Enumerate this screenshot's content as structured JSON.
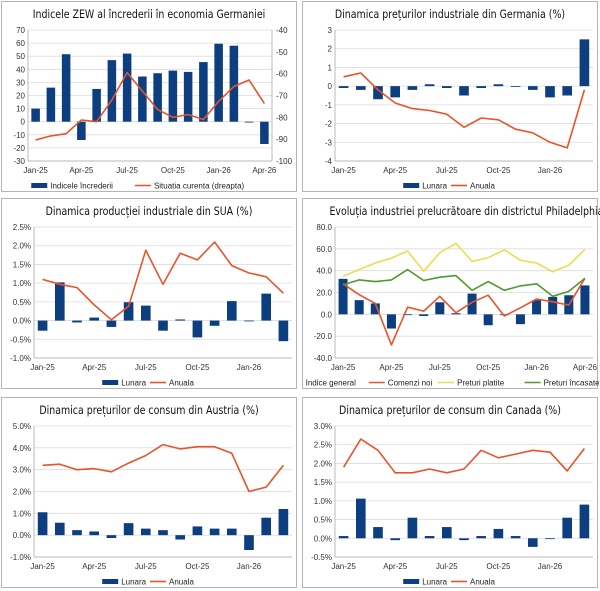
{
  "colors": {
    "bar": "#0d3f80",
    "line": "#e8532b",
    "yellow": "#ecdc50",
    "green": "#4e9a2c",
    "grid": "#dcdcdc"
  },
  "chart_data": [
    {
      "id": "zew",
      "type": "bar+line",
      "title": "Indicele ZEW al încrederii în economia Germaniei",
      "categories": [
        "Jan-25",
        "Feb-25",
        "Mar-25",
        "Apr-25",
        "May-25",
        "Jun-25",
        "Jul-25",
        "Aug-25",
        "Sep-25",
        "Oct-25",
        "Nov-25",
        "Dec-25",
        "Jan-26",
        "Feb-26",
        "Mar-26",
        "Apr-26"
      ],
      "xticks": [
        "Jan-25",
        "Apr-25",
        "Jul-25",
        "Oct-25",
        "Jan-26",
        "Apr-26"
      ],
      "ylim": [
        -30,
        70
      ],
      "ystep": 10,
      "yticks": [
        "70",
        "60",
        "50",
        "40",
        "30",
        "20",
        "10",
        "0",
        "-10",
        "-20",
        "-30"
      ],
      "y2lim": [
        -100,
        -40
      ],
      "y2ticks": [
        "-40",
        "-50",
        "-60",
        "-70",
        "-80",
        "-90",
        "-100"
      ],
      "series": [
        {
          "name": "Indicele încrederii",
          "kind": "bar",
          "color": "#0d3f80",
          "values": [
            10,
            26,
            51.5,
            -14,
            25,
            47,
            52,
            34.5,
            37,
            39,
            38,
            45.5,
            59.5,
            58,
            -0.5,
            -17
          ]
        },
        {
          "name": "Situatia curenta (dreapta)",
          "kind": "line",
          "axis": "right",
          "color": "#e8532b",
          "values": [
            -90.4,
            -88.5,
            -87.5,
            -81.2,
            -82,
            -72,
            -59.5,
            -68,
            -76.4,
            -80,
            -78.7,
            -81,
            -72.7,
            -65.9,
            -62.9,
            -73.7
          ]
        }
      ]
    },
    {
      "id": "ppi-de",
      "type": "bar+line",
      "title": "Dinamica prețurilor industriale din Germania (%)",
      "categories": [
        "Jan-25",
        "Feb-25",
        "Mar-25",
        "Apr-25",
        "May-25",
        "Jun-25",
        "Jul-25",
        "Aug-25",
        "Sep-25",
        "Oct-25",
        "Nov-25",
        "Dec-25",
        "Jan-26",
        "Feb-26",
        "Mar-26"
      ],
      "xticks": [
        "Jan-25",
        "Apr-25",
        "Jul-25",
        "Oct-25",
        "Jan-26"
      ],
      "ylim": [
        -4,
        3
      ],
      "yticks": [
        "3",
        "2",
        "1",
        "0",
        "-1",
        "-2",
        "-3",
        "-4"
      ],
      "series": [
        {
          "name": "Lunara",
          "kind": "bar",
          "color": "#0d3f80",
          "values": [
            -0.1,
            -0.2,
            -0.7,
            -0.6,
            -0.2,
            0.1,
            -0.1,
            -0.5,
            -0.1,
            0.1,
            0.0,
            -0.2,
            -0.6,
            -0.5,
            2.5
          ]
        },
        {
          "name": "Anuala",
          "kind": "line",
          "color": "#e8532b",
          "values": [
            0.5,
            0.7,
            -0.2,
            -0.9,
            -1.2,
            -1.3,
            -1.5,
            -2.2,
            -1.7,
            -1.8,
            -2.3,
            -2.5,
            -3.0,
            -3.3,
            -0.2
          ]
        }
      ]
    },
    {
      "id": "ip-us",
      "type": "bar+line",
      "title": "Dinamica producției industriale din SUA (%)",
      "categories": [
        "Jan-25",
        "Feb-25",
        "Mar-25",
        "Apr-25",
        "May-25",
        "Jun-25",
        "Jul-25",
        "Aug-25",
        "Sep-25",
        "Oct-25",
        "Nov-25",
        "Dec-25",
        "Jan-26",
        "Feb-26",
        "Mar-26"
      ],
      "xticks": [
        "Jan-25",
        "Apr-25",
        "Jul-25",
        "Oct-25",
        "Jan-26"
      ],
      "ylim": [
        -1.0,
        2.5
      ],
      "yticks": [
        "2.5%",
        "2.0%",
        "1.5%",
        "1.0%",
        "0.5%",
        "0.0%",
        "-0.5%",
        "-1.0%"
      ],
      "series": [
        {
          "name": "Lunara",
          "kind": "bar",
          "color": "#0d3f80",
          "values": [
            -0.27,
            1.02,
            -0.05,
            0.08,
            -0.17,
            0.49,
            0.4,
            -0.27,
            0.03,
            -0.45,
            -0.14,
            0.52,
            -0.02,
            0.72,
            -0.55
          ]
        },
        {
          "name": "Anuala",
          "kind": "line",
          "color": "#e8532b",
          "values": [
            1.1,
            0.97,
            0.88,
            0.42,
            0.02,
            0.38,
            1.88,
            0.97,
            1.8,
            1.62,
            2.1,
            1.47,
            1.27,
            1.17,
            0.73
          ]
        }
      ]
    },
    {
      "id": "philly",
      "type": "bar+line",
      "title": "Evoluția industriei prelucrătoare din districtul Philadelphia",
      "categories": [
        "Jan-25",
        "Feb-25",
        "Mar-25",
        "Apr-25",
        "May-25",
        "Jun-25",
        "Jul-25",
        "Aug-25",
        "Sep-25",
        "Oct-25",
        "Nov-25",
        "Dec-25",
        "Jan-26",
        "Feb-26",
        "Mar-26",
        "Apr-26"
      ],
      "xticks": [
        "Jan-25",
        "Apr-25",
        "Jul-25",
        "Oct-25",
        "Jan-26",
        "Apr-26"
      ],
      "ylim": [
        -40,
        80
      ],
      "yticks": [
        "80.0",
        "60.0",
        "40.0",
        "20.0",
        "0.0",
        "-20.0",
        "-40.0"
      ],
      "series": [
        {
          "name": "Indice general",
          "kind": "bar",
          "color": "#0d3f80",
          "values": [
            32.5,
            13,
            10,
            -13,
            0,
            -1.5,
            11,
            1,
            19,
            -10,
            0,
            -9,
            13,
            16,
            17.5,
            26.5
          ]
        },
        {
          "name": "Comenzi noi",
          "kind": "line",
          "color": "#e8532b",
          "values": [
            28,
            18,
            10,
            -28,
            6.5,
            3,
            16.5,
            1.5,
            11,
            17.5,
            -1.5,
            6,
            14,
            11.5,
            8.5,
            33
          ]
        },
        {
          "name": "Preturi platite",
          "kind": "line",
          "color": "#ecdc50",
          "values": [
            35,
            41,
            47,
            51.5,
            58,
            39.5,
            56.5,
            65,
            48.5,
            52,
            59,
            49.5,
            47,
            39,
            45,
            59.5
          ]
        },
        {
          "name": "Preturi încasate",
          "kind": "line",
          "color": "#4e9a2c",
          "values": [
            27,
            31.5,
            30,
            31.5,
            41,
            31,
            34,
            35.5,
            22,
            30,
            22,
            26,
            28,
            16.5,
            21,
            33
          ]
        }
      ]
    },
    {
      "id": "cpi-at",
      "type": "bar+line",
      "title": "Dinamica prețurilor de consum din Austria (%)",
      "categories": [
        "Jan-25",
        "Feb-25",
        "Mar-25",
        "Apr-25",
        "May-25",
        "Jun-25",
        "Jul-25",
        "Aug-25",
        "Sep-25",
        "Oct-25",
        "Nov-25",
        "Dec-25",
        "Jan-26",
        "Feb-26",
        "Mar-26"
      ],
      "xticks": [
        "Jan-25",
        "Apr-25",
        "Jul-25",
        "Oct-25",
        "Jan-26"
      ],
      "ylim": [
        -1.0,
        5.0
      ],
      "yticks": [
        "5.0%",
        "4.0%",
        "3.0%",
        "2.0%",
        "1.0%",
        "0.0%",
        "-1.0%"
      ],
      "series": [
        {
          "name": "Lunara",
          "kind": "bar",
          "color": "#0d3f80",
          "values": [
            1.05,
            0.57,
            0.23,
            0.17,
            -0.13,
            0.55,
            0.3,
            0.23,
            -0.2,
            0.4,
            0.3,
            0.3,
            -0.68,
            0.8,
            1.2
          ]
        },
        {
          "name": "Anuala",
          "kind": "line",
          "color": "#e8532b",
          "values": [
            3.2,
            3.25,
            3.0,
            3.05,
            2.9,
            3.3,
            3.65,
            4.15,
            3.95,
            4.05,
            4.05,
            3.75,
            2.0,
            2.2,
            3.2
          ]
        }
      ]
    },
    {
      "id": "cpi-ca",
      "type": "bar+line",
      "title": "Dinamica prețurilor de consum din Canada (%)",
      "categories": [
        "Jan-25",
        "Feb-25",
        "Mar-25",
        "Apr-25",
        "May-25",
        "Jun-25",
        "Jul-25",
        "Aug-25",
        "Sep-25",
        "Oct-25",
        "Nov-25",
        "Dec-25",
        "Jan-26",
        "Feb-26",
        "Mar-26"
      ],
      "xticks": [
        "Jan-25",
        "Apr-25",
        "Jul-25",
        "Oct-25",
        "Jan-26"
      ],
      "ylim": [
        -0.5,
        3.0
      ],
      "yticks": [
        "3.0%",
        "2.5%",
        "2.0%",
        "1.5%",
        "1.0%",
        "0.5%",
        "0.0%",
        "-0.5%"
      ],
      "series": [
        {
          "name": "Lunara",
          "kind": "bar",
          "color": "#0d3f80",
          "values": [
            0.06,
            1.06,
            0.3,
            -0.05,
            0.55,
            0.06,
            0.3,
            -0.05,
            0.06,
            0.25,
            0.06,
            -0.23,
            0.0,
            0.55,
            0.9
          ]
        },
        {
          "name": "Anuala",
          "kind": "line",
          "color": "#e8532b",
          "values": [
            1.9,
            2.65,
            2.35,
            1.75,
            1.75,
            1.85,
            1.75,
            1.85,
            2.35,
            2.15,
            2.25,
            2.35,
            2.3,
            1.8,
            2.4
          ]
        }
      ]
    }
  ]
}
